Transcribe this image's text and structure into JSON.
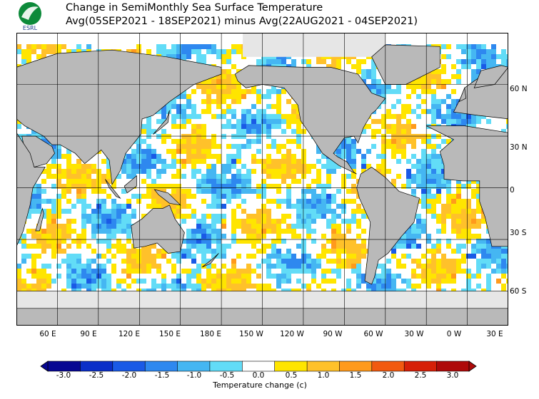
{
  "header": {
    "title": "Change in SemiMonthly Sea Surface Temperature",
    "subtitle": "Avg(05SEP2021 - 18SEP2021) minus Avg(22AUG2021 - 04SEP2021)",
    "logo_text": "ESRL"
  },
  "map": {
    "projection": "equirectangular",
    "lon_range": [
      30,
      390
    ],
    "lat_range": [
      -80,
      90
    ],
    "grid_lon_step": 30,
    "grid_lat_step": 30,
    "lon_labels": [
      "60 E",
      "90 E",
      "120 E",
      "150 E",
      "180 E",
      "150 W",
      "120 W",
      "90 W",
      "60 W",
      "30 W",
      "0 W",
      "30 E"
    ],
    "lat_labels": [
      "60 N",
      "30 N",
      "0",
      "30 S",
      "60 S"
    ],
    "colors": {
      "land": "#b9b9b9",
      "ice": "#e6e6e6",
      "coast": "#000000",
      "grid": "#000000"
    }
  },
  "colorbar": {
    "tick_labels": [
      "-3.0",
      "-2.5",
      "-2.0",
      "-1.5",
      "-1.0",
      "-0.5",
      "0.0",
      "0.5",
      "1.0",
      "1.5",
      "2.0",
      "2.5",
      "3.0"
    ],
    "label": "Temperature change  (c)",
    "colors": [
      "#070792",
      "#0b2fc8",
      "#1a5ae6",
      "#2e88ef",
      "#45b6f2",
      "#62dcf7",
      "#ffffff",
      "#ffe500",
      "#ffc12a",
      "#ff9a1c",
      "#f25a10",
      "#d62008",
      "#ae0a0a"
    ]
  }
}
